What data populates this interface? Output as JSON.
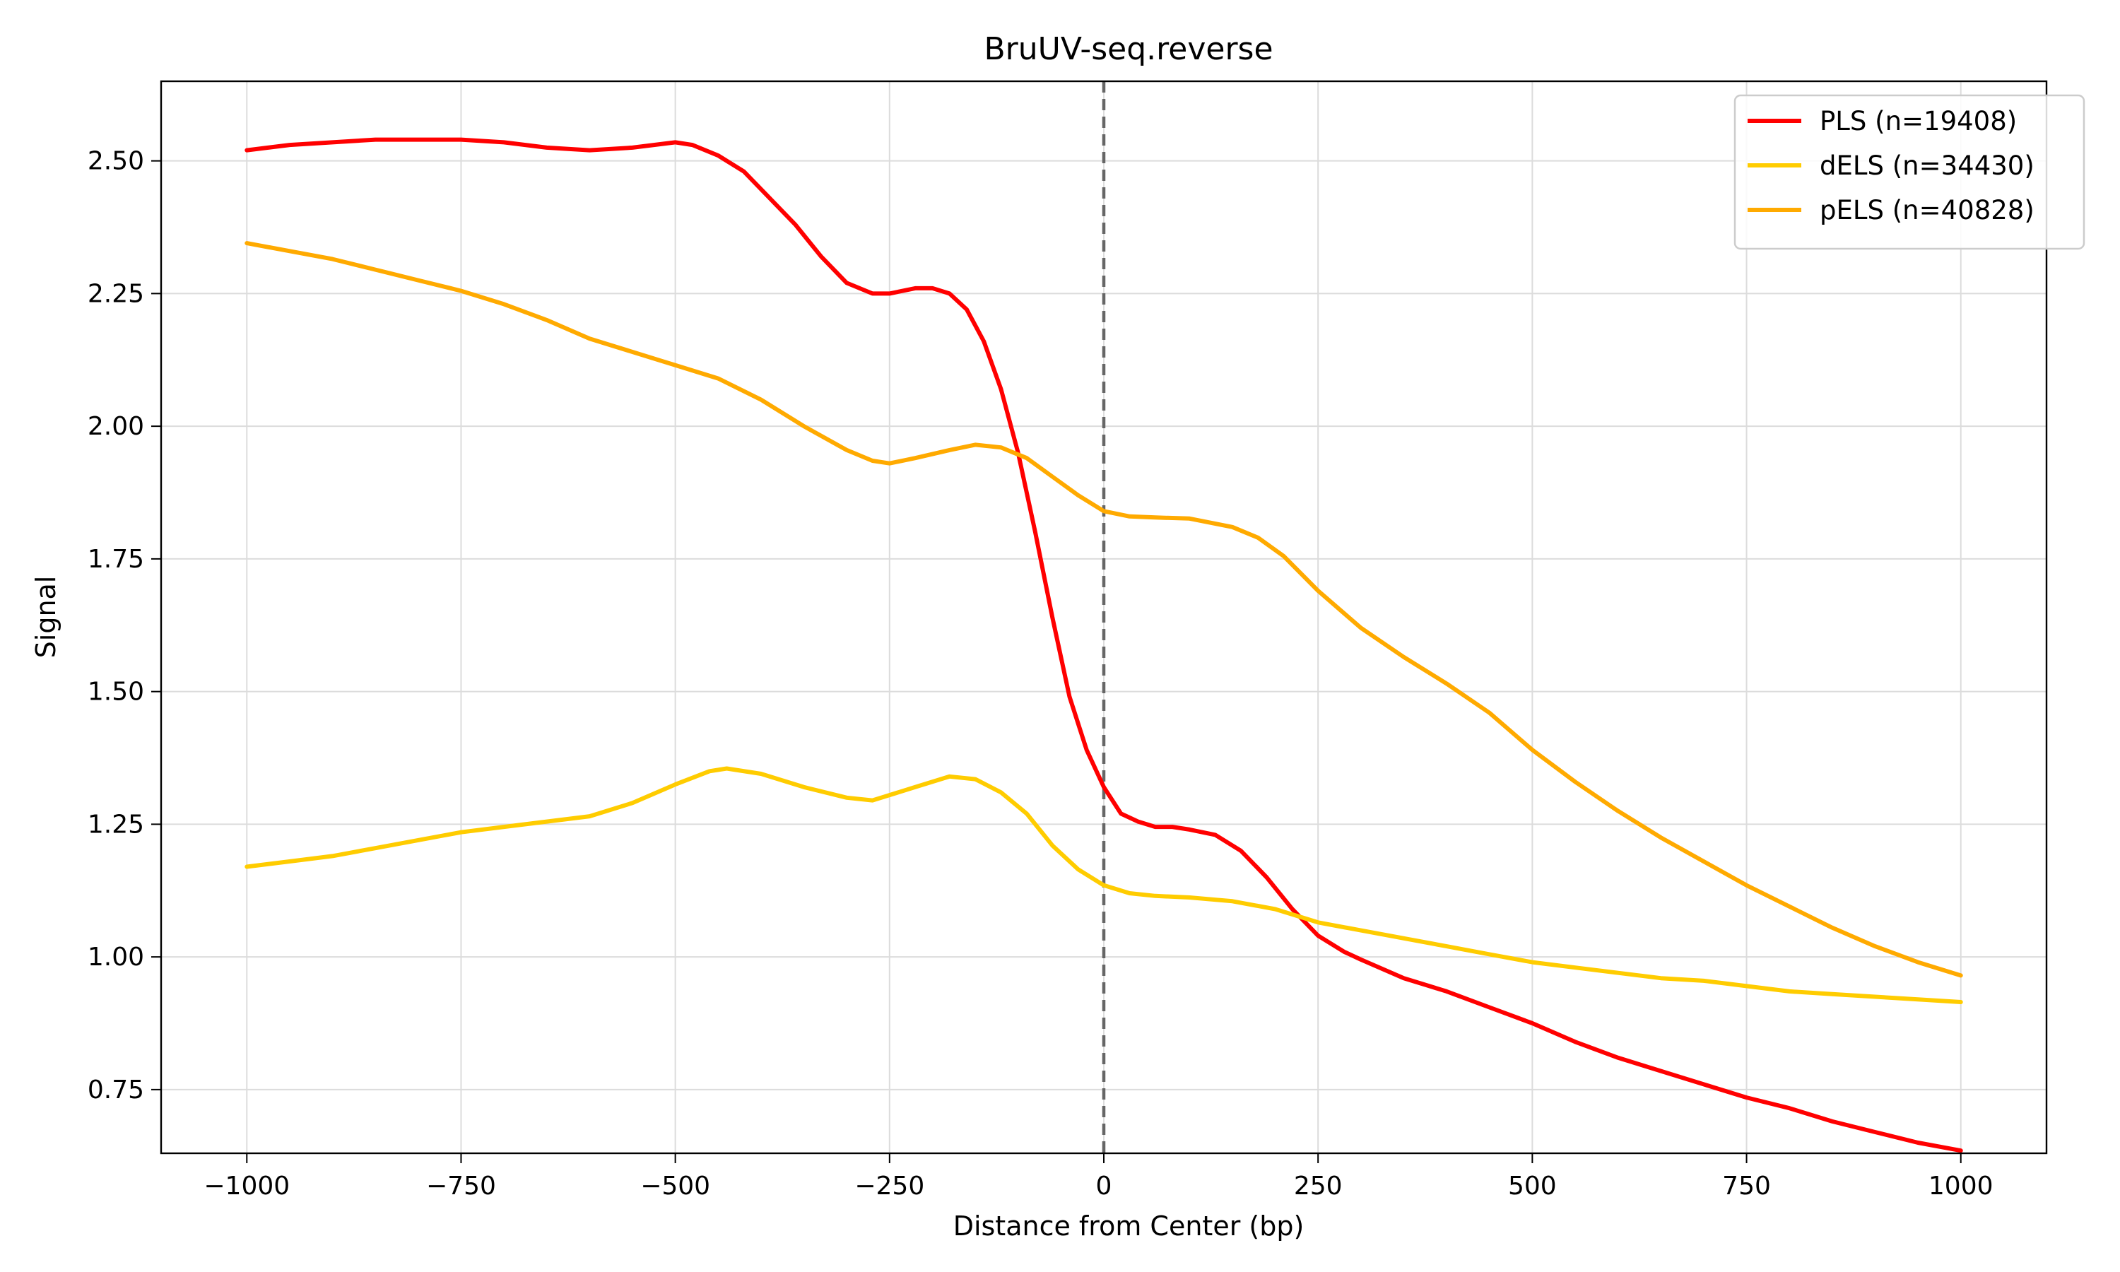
{
  "chart_data": {
    "type": "line",
    "title": "BruUV-seq.reverse",
    "xlabel": "Distance from Center (bp)",
    "ylabel": "Signal",
    "xlim": [
      -1100,
      1100
    ],
    "ylim": [
      0.63,
      2.65
    ],
    "xticks": [
      -1000,
      -750,
      -500,
      -250,
      0,
      250,
      500,
      750,
      1000
    ],
    "xtick_labels": [
      "−1000",
      "−750",
      "−500",
      "−250",
      "0",
      "250",
      "500",
      "750",
      "1000"
    ],
    "yticks": [
      0.75,
      1.0,
      1.25,
      1.5,
      1.75,
      2.0,
      2.25,
      2.5
    ],
    "ytick_labels": [
      "0.75",
      "1.00",
      "1.25",
      "1.50",
      "1.75",
      "2.00",
      "2.25",
      "2.50"
    ],
    "grid": true,
    "legend_position": "top-right",
    "center_line": {
      "x": 0,
      "style": "dashed",
      "color": "#666666"
    },
    "series": [
      {
        "name": "PLS (n=19408)",
        "color": "#ff0000",
        "points": [
          [
            -1000,
            2.52
          ],
          [
            -950,
            2.53
          ],
          [
            -900,
            2.535
          ],
          [
            -850,
            2.54
          ],
          [
            -800,
            2.54
          ],
          [
            -750,
            2.54
          ],
          [
            -700,
            2.535
          ],
          [
            -650,
            2.525
          ],
          [
            -600,
            2.52
          ],
          [
            -550,
            2.525
          ],
          [
            -500,
            2.535
          ],
          [
            -480,
            2.53
          ],
          [
            -450,
            2.51
          ],
          [
            -420,
            2.48
          ],
          [
            -390,
            2.43
          ],
          [
            -360,
            2.38
          ],
          [
            -330,
            2.32
          ],
          [
            -300,
            2.27
          ],
          [
            -270,
            2.25
          ],
          [
            -250,
            2.25
          ],
          [
            -220,
            2.26
          ],
          [
            -200,
            2.26
          ],
          [
            -180,
            2.25
          ],
          [
            -160,
            2.22
          ],
          [
            -140,
            2.16
          ],
          [
            -120,
            2.07
          ],
          [
            -100,
            1.95
          ],
          [
            -80,
            1.8
          ],
          [
            -60,
            1.64
          ],
          [
            -40,
            1.49
          ],
          [
            -20,
            1.39
          ],
          [
            0,
            1.32
          ],
          [
            20,
            1.27
          ],
          [
            40,
            1.255
          ],
          [
            60,
            1.245
          ],
          [
            80,
            1.245
          ],
          [
            100,
            1.24
          ],
          [
            130,
            1.23
          ],
          [
            160,
            1.2
          ],
          [
            190,
            1.15
          ],
          [
            220,
            1.09
          ],
          [
            250,
            1.04
          ],
          [
            280,
            1.01
          ],
          [
            300,
            0.995
          ],
          [
            350,
            0.96
          ],
          [
            400,
            0.935
          ],
          [
            450,
            0.905
          ],
          [
            500,
            0.875
          ],
          [
            550,
            0.84
          ],
          [
            600,
            0.81
          ],
          [
            650,
            0.785
          ],
          [
            700,
            0.76
          ],
          [
            750,
            0.735
          ],
          [
            800,
            0.715
          ],
          [
            850,
            0.69
          ],
          [
            900,
            0.67
          ],
          [
            950,
            0.65
          ],
          [
            1000,
            0.635
          ]
        ]
      },
      {
        "name": "dELS (n=34430)",
        "color": "#ffcc00",
        "points": [
          [
            -1000,
            1.17
          ],
          [
            -950,
            1.18
          ],
          [
            -900,
            1.19
          ],
          [
            -850,
            1.205
          ],
          [
            -800,
            1.22
          ],
          [
            -750,
            1.235
          ],
          [
            -700,
            1.245
          ],
          [
            -650,
            1.255
          ],
          [
            -600,
            1.265
          ],
          [
            -550,
            1.29
          ],
          [
            -500,
            1.325
          ],
          [
            -460,
            1.35
          ],
          [
            -440,
            1.355
          ],
          [
            -400,
            1.345
          ],
          [
            -350,
            1.32
          ],
          [
            -300,
            1.3
          ],
          [
            -270,
            1.295
          ],
          [
            -250,
            1.305
          ],
          [
            -220,
            1.32
          ],
          [
            -180,
            1.34
          ],
          [
            -150,
            1.335
          ],
          [
            -120,
            1.31
          ],
          [
            -90,
            1.27
          ],
          [
            -60,
            1.21
          ],
          [
            -30,
            1.165
          ],
          [
            0,
            1.135
          ],
          [
            30,
            1.12
          ],
          [
            60,
            1.115
          ],
          [
            100,
            1.112
          ],
          [
            150,
            1.105
          ],
          [
            200,
            1.09
          ],
          [
            250,
            1.065
          ],
          [
            300,
            1.05
          ],
          [
            350,
            1.035
          ],
          [
            400,
            1.02
          ],
          [
            450,
            1.005
          ],
          [
            500,
            0.99
          ],
          [
            550,
            0.98
          ],
          [
            600,
            0.97
          ],
          [
            650,
            0.96
          ],
          [
            700,
            0.955
          ],
          [
            750,
            0.945
          ],
          [
            800,
            0.935
          ],
          [
            850,
            0.93
          ],
          [
            900,
            0.925
          ],
          [
            950,
            0.92
          ],
          [
            1000,
            0.915
          ]
        ]
      },
      {
        "name": "pELS (n=40828)",
        "color": "#ffaa00",
        "points": [
          [
            -1000,
            2.345
          ],
          [
            -950,
            2.33
          ],
          [
            -900,
            2.315
          ],
          [
            -850,
            2.295
          ],
          [
            -800,
            2.275
          ],
          [
            -750,
            2.255
          ],
          [
            -700,
            2.23
          ],
          [
            -650,
            2.2
          ],
          [
            -600,
            2.165
          ],
          [
            -550,
            2.14
          ],
          [
            -500,
            2.115
          ],
          [
            -450,
            2.09
          ],
          [
            -400,
            2.05
          ],
          [
            -350,
            2.0
          ],
          [
            -300,
            1.955
          ],
          [
            -270,
            1.935
          ],
          [
            -250,
            1.93
          ],
          [
            -220,
            1.94
          ],
          [
            -180,
            1.955
          ],
          [
            -150,
            1.965
          ],
          [
            -120,
            1.96
          ],
          [
            -90,
            1.94
          ],
          [
            -60,
            1.905
          ],
          [
            -30,
            1.87
          ],
          [
            0,
            1.84
          ],
          [
            30,
            1.83
          ],
          [
            60,
            1.828
          ],
          [
            100,
            1.826
          ],
          [
            150,
            1.81
          ],
          [
            180,
            1.79
          ],
          [
            210,
            1.755
          ],
          [
            250,
            1.69
          ],
          [
            300,
            1.62
          ],
          [
            350,
            1.565
          ],
          [
            400,
            1.515
          ],
          [
            450,
            1.46
          ],
          [
            500,
            1.39
          ],
          [
            550,
            1.33
          ],
          [
            600,
            1.275
          ],
          [
            650,
            1.225
          ],
          [
            700,
            1.18
          ],
          [
            750,
            1.135
          ],
          [
            800,
            1.095
          ],
          [
            850,
            1.055
          ],
          [
            900,
            1.02
          ],
          [
            950,
            0.99
          ],
          [
            1000,
            0.965
          ]
        ]
      }
    ]
  }
}
